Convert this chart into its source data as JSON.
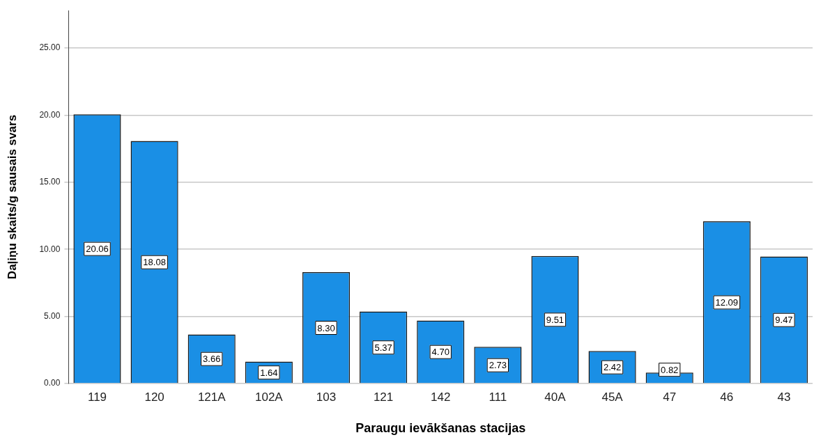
{
  "chart_data": {
    "type": "bar",
    "xlabel": "Paraugu ievākšanas stacijas",
    "ylabel": "Daļiņu skaits/g sausais svars",
    "categories": [
      "119",
      "120",
      "121A",
      "102A",
      "103",
      "121",
      "142",
      "111",
      "40A",
      "45A",
      "47",
      "46",
      "43"
    ],
    "values": [
      20.06,
      18.08,
      3.66,
      1.64,
      8.3,
      5.37,
      4.7,
      2.73,
      9.51,
      2.42,
      0.82,
      12.09,
      9.47
    ],
    "value_labels": [
      "20.06",
      "18.08",
      "3.66",
      "1.64",
      "8.30",
      "5.37",
      "4.70",
      "2.73",
      "9.51",
      "2.42",
      "0.82",
      "12.09",
      "9.47"
    ],
    "color": "#1a8fe5",
    "ylim": [
      0,
      27.8
    ],
    "yticks": [
      {
        "value": 0,
        "label": "0.00"
      },
      {
        "value": 5,
        "label": "5.00"
      },
      {
        "value": 10,
        "label": "10.00"
      },
      {
        "value": 15,
        "label": "15.00"
      },
      {
        "value": 20,
        "label": "20.00"
      },
      {
        "value": 25,
        "label": "25.00"
      }
    ],
    "grid": "y",
    "legend": false
  }
}
